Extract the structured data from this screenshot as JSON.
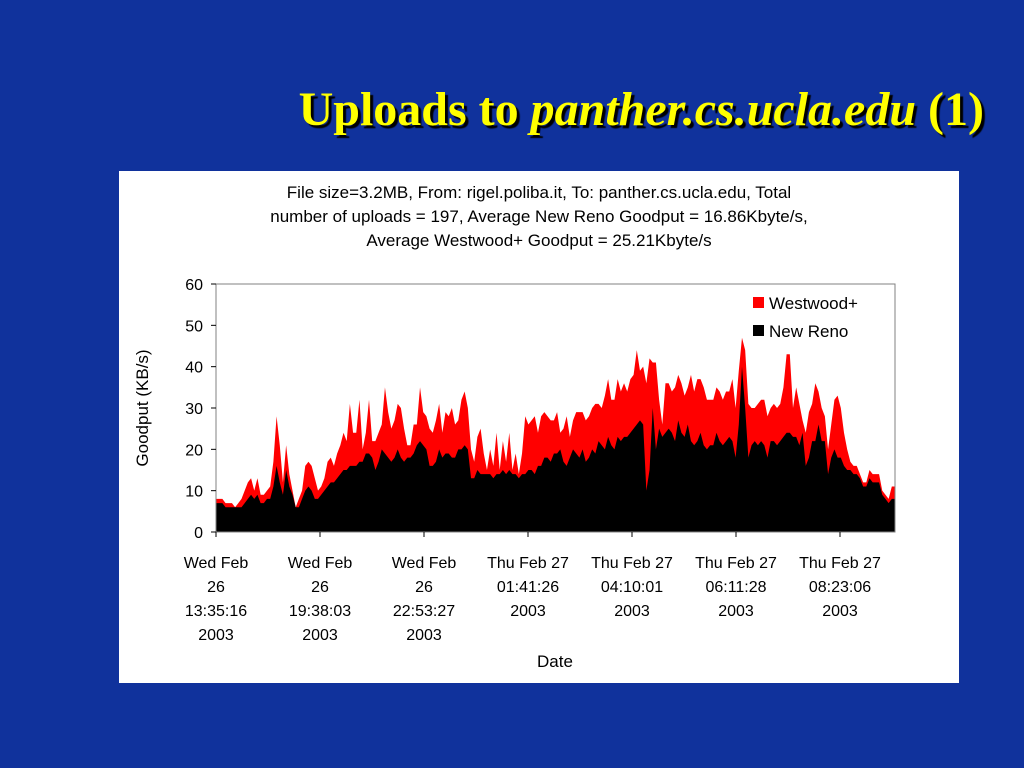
{
  "slide": {
    "title_prefix": "Uploads to ",
    "title_italic": "panther.cs.ucla.edu",
    "title_suffix": " (1)"
  },
  "colors": {
    "background": "#10329c",
    "title": "#ffff00",
    "westwood": "#ff0000",
    "newreno": "#000000"
  },
  "chart_data": {
    "type": "area",
    "title_lines": [
      "File size=3.2MB, From: rigel.poliba.it, To: panther.cs.ucla.edu, Total",
      "number of uploads = 197, Average New Reno Goodput = 16.86Kbyte/s,",
      "Average Westwood+ Goodput = 25.21Kbyte/s"
    ],
    "xlabel": "Date",
    "ylabel": "Goodput (KB/s)",
    "ylim": [
      0,
      60
    ],
    "yticks": [
      "0",
      "10",
      "20",
      "30",
      "40",
      "50",
      "60"
    ],
    "xtick_labels": [
      [
        "Wed Feb",
        "26",
        "13:35:16",
        "2003"
      ],
      [
        "Wed Feb",
        "26",
        "19:38:03",
        "2003"
      ],
      [
        "Wed Feb",
        "26",
        "22:53:27",
        "2003"
      ],
      [
        "Thu Feb 27",
        "01:41:26",
        "2003"
      ],
      [
        "Thu Feb 27",
        "04:10:01",
        "2003"
      ],
      [
        "Thu Feb 27",
        "06:11:28",
        "2003"
      ],
      [
        "Thu Feb 27",
        "08:23:06",
        "2003"
      ]
    ],
    "legend_position": "top-right",
    "grid": false,
    "series": [
      {
        "name": "Westwood+",
        "color": "#ff0000",
        "values": [
          8,
          8,
          8,
          7,
          7,
          7,
          6,
          7,
          8,
          10,
          12,
          13,
          10,
          13,
          9,
          9,
          10,
          11,
          17,
          28,
          21,
          12,
          21,
          14,
          10,
          6,
          8,
          10,
          16,
          17,
          16,
          13,
          10,
          11,
          13,
          17,
          18,
          16,
          19,
          21,
          24,
          22,
          31,
          24,
          24,
          32,
          20,
          24,
          32,
          22,
          22,
          24,
          26,
          35,
          29,
          25,
          27,
          31,
          30,
          25,
          21,
          21,
          26,
          26,
          35,
          29,
          28,
          25,
          24,
          27,
          31,
          24,
          29,
          28,
          30,
          26,
          27,
          32,
          34,
          30,
          20,
          17,
          23,
          25,
          19,
          15,
          20,
          16,
          24,
          15,
          22,
          17,
          24,
          15,
          19,
          14,
          19,
          28,
          26,
          27,
          28,
          24,
          28,
          29,
          28,
          27,
          27,
          29,
          24,
          25,
          28,
          23,
          27,
          29,
          29,
          29,
          27,
          28,
          30,
          31,
          31,
          30,
          33,
          37,
          32,
          32,
          37,
          34,
          36,
          34,
          37,
          38,
          44,
          39,
          40,
          36,
          42,
          41,
          41,
          32,
          26,
          36,
          36,
          34,
          35,
          38,
          36,
          33,
          35,
          38,
          34,
          37,
          37,
          35,
          32,
          32,
          32,
          35,
          34,
          32,
          34,
          34,
          37,
          30,
          39,
          47,
          44,
          31,
          30,
          30,
          31,
          32,
          32,
          28,
          30,
          31,
          30,
          31,
          35,
          43,
          43,
          30,
          35,
          31,
          27,
          24,
          29,
          31,
          36,
          34,
          30,
          28,
          20,
          26,
          32,
          33,
          30,
          24,
          20,
          17,
          16,
          16,
          14,
          12,
          12,
          15,
          14,
          14,
          14,
          10,
          9,
          8,
          11,
          11
        ]
      },
      {
        "name": "New Reno",
        "color": "#000000",
        "values": [
          7,
          7,
          7,
          6,
          6,
          6,
          6,
          6,
          6,
          7,
          8,
          9,
          8,
          9,
          7,
          7,
          8,
          8,
          11,
          16,
          12,
          9,
          15,
          11,
          9,
          6,
          6,
          8,
          10,
          11,
          10,
          8,
          8,
          9,
          10,
          11,
          12,
          12,
          13,
          14,
          15,
          15,
          16,
          16,
          16,
          17,
          17,
          19,
          19,
          18,
          15,
          17,
          20,
          19,
          18,
          17,
          18,
          20,
          18,
          17,
          18,
          18,
          19,
          21,
          22,
          21,
          20,
          16,
          16,
          17,
          20,
          18,
          19,
          19,
          18,
          18,
          20,
          20,
          21,
          20,
          13,
          13,
          15,
          14,
          14,
          14,
          14,
          13,
          14,
          14,
          15,
          14,
          15,
          14,
          14,
          13,
          14,
          14,
          15,
          15,
          14,
          16,
          16,
          18,
          18,
          17,
          19,
          19,
          20,
          17,
          16,
          18,
          20,
          19,
          18,
          20,
          17,
          18,
          20,
          19,
          22,
          21,
          20,
          23,
          21,
          20,
          23,
          22,
          23,
          23,
          24,
          25,
          26,
          27,
          26,
          10,
          15,
          30,
          20,
          25,
          23,
          24,
          25,
          24,
          22,
          27,
          24,
          23,
          26,
          22,
          21,
          22,
          24,
          21,
          20,
          21,
          21,
          24,
          22,
          21,
          22,
          23,
          22,
          18,
          26,
          40,
          30,
          18,
          21,
          22,
          21,
          22,
          21,
          18,
          22,
          22,
          21,
          22,
          23,
          24,
          24,
          23,
          23,
          21,
          24,
          16,
          18,
          22,
          22,
          26,
          22,
          22,
          14,
          18,
          20,
          18,
          18,
          16,
          15,
          15,
          14,
          14,
          13,
          11,
          11,
          13,
          12,
          12,
          12,
          9,
          8,
          7,
          8,
          8
        ]
      }
    ]
  }
}
